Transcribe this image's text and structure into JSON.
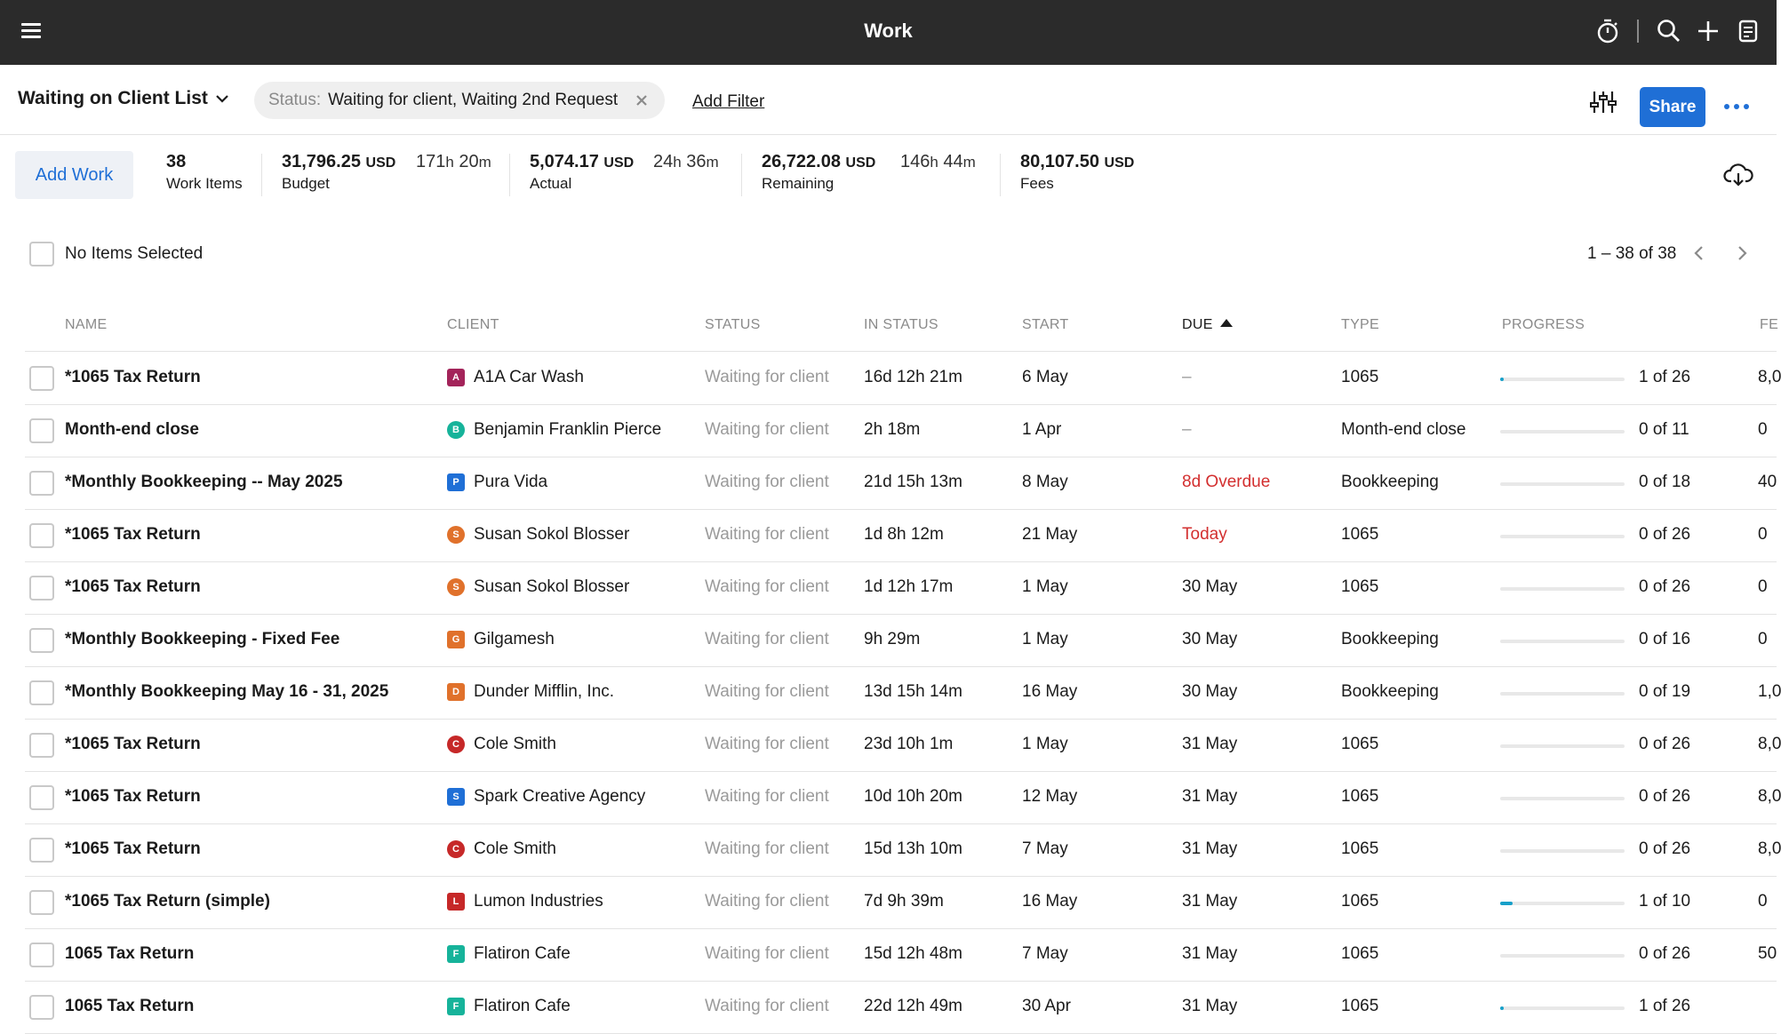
{
  "header": {
    "title": "Work"
  },
  "filter": {
    "list_name": "Waiting on Client List",
    "chip_label": "Status:",
    "chip_value": "Waiting for client, Waiting 2nd Request",
    "add_filter": "Add Filter",
    "share": "Share"
  },
  "summary": {
    "add_work": "Add Work",
    "work_items_count": "38",
    "work_items_label": "Work Items",
    "budget_value": "31,796.25",
    "budget_unit": "USD",
    "budget_hours": "171",
    "budget_minutes": "20",
    "budget_label": "Budget",
    "actual_value": "5,074.17",
    "actual_unit": "USD",
    "actual_hours": "24",
    "actual_minutes": "36",
    "actual_label": "Actual",
    "remaining_value": "26,722.08",
    "remaining_unit": "USD",
    "remaining_hours": "146",
    "remaining_minutes": "44",
    "remaining_label": "Remaining",
    "fees_value": "80,107.50",
    "fees_unit": "USD",
    "fees_label": "Fees",
    "h": "h",
    "m": "m"
  },
  "selection": {
    "label": "No Items Selected",
    "pager": "1 – 38 of 38"
  },
  "columns": {
    "name": "NAME",
    "client": "CLIENT",
    "status": "STATUS",
    "in_status": "IN STATUS",
    "start": "START",
    "due": "DUE",
    "type": "TYPE",
    "progress": "PROGRESS",
    "fees": "FE"
  },
  "rows": [
    {
      "name": "*1065 Tax Return",
      "client": "A1A Car Wash",
      "avatar": "A",
      "avatar_color": "#a3245a",
      "avatar_shape": "square",
      "status": "Waiting for client",
      "in_status": "16d 12h 21m",
      "start": "6 May",
      "due": "–",
      "due_style": "dash",
      "type": "1065",
      "progress_fraction": 0.03,
      "progress": "1 of 26",
      "fee": "8,0"
    },
    {
      "name": "Month-end close",
      "client": "Benjamin Franklin Pierce",
      "avatar": "B",
      "avatar_color": "#16b39a",
      "avatar_shape": "round",
      "status": "Waiting for client",
      "in_status": "2h 18m",
      "start": "1 Apr",
      "due": "–",
      "due_style": "dash",
      "type": "Month-end close",
      "progress_fraction": 0,
      "progress": "0 of 11",
      "fee": "0"
    },
    {
      "name": "*Monthly Bookkeeping -- May 2025",
      "client": "Pura Vida",
      "avatar": "P",
      "avatar_color": "#1f6fd6",
      "avatar_shape": "square",
      "status": "Waiting for client",
      "in_status": "21d 15h 13m",
      "start": "8 May",
      "due": "8d Overdue",
      "due_style": "red",
      "type": "Bookkeeping",
      "progress_fraction": 0,
      "progress": "0 of 18",
      "fee": "40"
    },
    {
      "name": "*1065 Tax Return",
      "client": "Susan Sokol Blosser",
      "avatar": "S",
      "avatar_color": "#e0712b",
      "avatar_shape": "round",
      "status": "Waiting for client",
      "in_status": "1d 8h 12m",
      "start": "21 May",
      "due": "Today",
      "due_style": "red",
      "type": "1065",
      "progress_fraction": 0,
      "progress": "0 of 26",
      "fee": "0"
    },
    {
      "name": "*1065 Tax Return",
      "client": "Susan Sokol Blosser",
      "avatar": "S",
      "avatar_color": "#e0712b",
      "avatar_shape": "round",
      "status": "Waiting for client",
      "in_status": "1d 12h 17m",
      "start": "1 May",
      "due": "30 May",
      "due_style": "",
      "type": "1065",
      "progress_fraction": 0,
      "progress": "0 of 26",
      "fee": "0"
    },
    {
      "name": "*Monthly Bookkeeping - Fixed Fee",
      "client": "Gilgamesh",
      "avatar": "G",
      "avatar_color": "#e0712b",
      "avatar_shape": "square",
      "status": "Waiting for client",
      "in_status": "9h 29m",
      "start": "1 May",
      "due": "30 May",
      "due_style": "",
      "type": "Bookkeeping",
      "progress_fraction": 0,
      "progress": "0 of 16",
      "fee": "0"
    },
    {
      "name": "*Monthly Bookkeeping May 16 - 31, 2025",
      "client": "Dunder Mifflin, Inc.",
      "avatar": "D",
      "avatar_color": "#e0712b",
      "avatar_shape": "square",
      "status": "Waiting for client",
      "in_status": "13d 15h 14m",
      "start": "16 May",
      "due": "30 May",
      "due_style": "",
      "type": "Bookkeeping",
      "progress_fraction": 0,
      "progress": "0 of 19",
      "fee": "1,0"
    },
    {
      "name": "*1065 Tax Return",
      "client": "Cole Smith",
      "avatar": "C",
      "avatar_color": "#c62828",
      "avatar_shape": "round",
      "status": "Waiting for client",
      "in_status": "23d 10h 1m",
      "start": "1 May",
      "due": "31 May",
      "due_style": "",
      "type": "1065",
      "progress_fraction": 0,
      "progress": "0 of 26",
      "fee": "8,0"
    },
    {
      "name": "*1065 Tax Return",
      "client": "Spark Creative Agency",
      "avatar": "S",
      "avatar_color": "#1f6fd6",
      "avatar_shape": "square",
      "status": "Waiting for client",
      "in_status": "10d 10h 20m",
      "start": "12 May",
      "due": "31 May",
      "due_style": "",
      "type": "1065",
      "progress_fraction": 0,
      "progress": "0 of 26",
      "fee": "8,0"
    },
    {
      "name": "*1065 Tax Return",
      "client": "Cole Smith",
      "avatar": "C",
      "avatar_color": "#c62828",
      "avatar_shape": "round",
      "status": "Waiting for client",
      "in_status": "15d 13h 10m",
      "start": "7 May",
      "due": "31 May",
      "due_style": "",
      "type": "1065",
      "progress_fraction": 0,
      "progress": "0 of 26",
      "fee": "8,0"
    },
    {
      "name": "*1065 Tax Return (simple)",
      "client": "Lumon Industries",
      "avatar": "L",
      "avatar_color": "#c62828",
      "avatar_shape": "square",
      "status": "Waiting for client",
      "in_status": "7d 9h 39m",
      "start": "16 May",
      "due": "31 May",
      "due_style": "",
      "type": "1065",
      "progress_fraction": 0.1,
      "progress": "1 of 10",
      "fee": "0"
    },
    {
      "name": "1065 Tax Return",
      "client": "Flatiron Cafe",
      "avatar": "F",
      "avatar_color": "#16b39a",
      "avatar_shape": "square",
      "status": "Waiting for client",
      "in_status": "15d 12h 48m",
      "start": "7 May",
      "due": "31 May",
      "due_style": "",
      "type": "1065",
      "progress_fraction": 0,
      "progress": "0 of 26",
      "fee": "50"
    },
    {
      "name": "1065 Tax Return",
      "client": "Flatiron Cafe",
      "avatar": "F",
      "avatar_color": "#16b39a",
      "avatar_shape": "square",
      "status": "Waiting for client",
      "in_status": "22d 12h 49m",
      "start": "30 Apr",
      "due": "31 May",
      "due_style": "",
      "type": "1065",
      "progress_fraction": 0.03,
      "progress": "1 of 26",
      "fee": ""
    }
  ],
  "colors": {
    "accent": "#1f6fd6",
    "overdue": "#d32f2f",
    "progress": "#18a0c9",
    "topbar": "#2b2b2b"
  }
}
